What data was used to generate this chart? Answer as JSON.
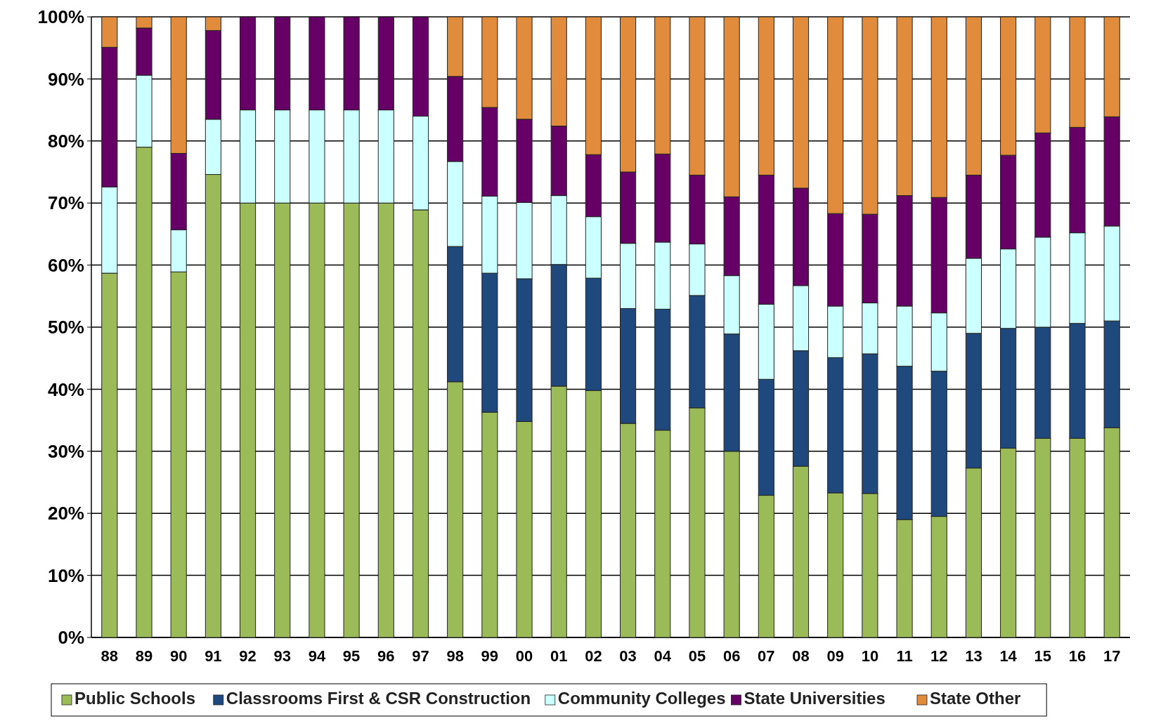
{
  "chart_data": {
    "type": "bar",
    "stacked": true,
    "grid": "y",
    "legend": "bottom",
    "categories": [
      "88",
      "89",
      "90",
      "91",
      "92",
      "93",
      "94",
      "95",
      "96",
      "97",
      "98",
      "99",
      "00",
      "01",
      "02",
      "03",
      "04",
      "05",
      "06",
      "07",
      "08",
      "09",
      "10",
      "11",
      "12",
      "13",
      "14",
      "15",
      "16",
      "17"
    ],
    "ylim": [
      0,
      100
    ],
    "yticks": [
      {
        "value": 0,
        "label": "0%"
      },
      {
        "value": 10,
        "label": "10%"
      },
      {
        "value": 20,
        "label": "20%"
      },
      {
        "value": 30,
        "label": "30%"
      },
      {
        "value": 40,
        "label": "40%"
      },
      {
        "value": 50,
        "label": "50%"
      },
      {
        "value": 60,
        "label": "60%"
      },
      {
        "value": 70,
        "label": "70%"
      },
      {
        "value": 80,
        "label": "80%"
      },
      {
        "value": 90,
        "label": "90%"
      },
      {
        "value": 100,
        "label": "100%"
      }
    ],
    "series": [
      {
        "name": "Public Schools",
        "color": "#9bbb59",
        "values": [
          58.7,
          79,
          58.9,
          74.6,
          70,
          70,
          70,
          70,
          70,
          68.9,
          41.2,
          36.3,
          34.8,
          40.5,
          39.8,
          34.5,
          33.4,
          37,
          30,
          22.9,
          27.6,
          23.3,
          23.2,
          19,
          19.5,
          27.3,
          30.5,
          32.1,
          32.1,
          33.8
        ]
      },
      {
        "name": "Classrooms First & CSR Construction",
        "color": "#1f497d",
        "values": [
          0,
          0,
          0,
          0,
          0,
          0,
          0,
          0,
          0,
          0,
          21.8,
          22.4,
          23,
          19.6,
          18.1,
          18.5,
          19.5,
          18.1,
          18.9,
          18.7,
          18.6,
          21.8,
          22.5,
          24.7,
          23.4,
          21.7,
          19.3,
          17.9,
          18.5,
          17.2
        ]
      },
      {
        "name": "Community Colleges",
        "color": "#ccffff",
        "values": [
          13.9,
          11.6,
          6.8,
          8.9,
          15,
          15,
          15,
          15,
          15,
          15.1,
          13.7,
          12.4,
          12.3,
          11.1,
          9.9,
          10.5,
          10.8,
          8.3,
          9.4,
          12.1,
          10.5,
          8.3,
          8.2,
          9.7,
          9.4,
          12.1,
          12.8,
          14.5,
          14.6,
          15.3
        ]
      },
      {
        "name": "State Universities",
        "color": "#660066",
        "values": [
          22.5,
          7.6,
          12.3,
          14.3,
          15,
          15,
          15,
          15,
          15,
          16,
          13.7,
          14.3,
          13.4,
          11.2,
          10,
          11.5,
          14.2,
          11.1,
          12.7,
          20.8,
          15.7,
          14.9,
          14.3,
          17.8,
          18.6,
          13.4,
          15.1,
          16.8,
          17,
          17.6
        ]
      },
      {
        "name": "State Other",
        "color": "#e08c3c",
        "values": [
          4.9,
          1.8,
          22,
          2.2,
          0,
          0,
          0,
          0,
          0,
          0,
          9.6,
          14.6,
          16.5,
          17.6,
          22.2,
          25,
          22.1,
          25.5,
          29,
          25.5,
          27.6,
          31.7,
          31.8,
          28.8,
          29.1,
          25.5,
          22.3,
          18.7,
          17.8,
          16.1
        ]
      }
    ]
  }
}
